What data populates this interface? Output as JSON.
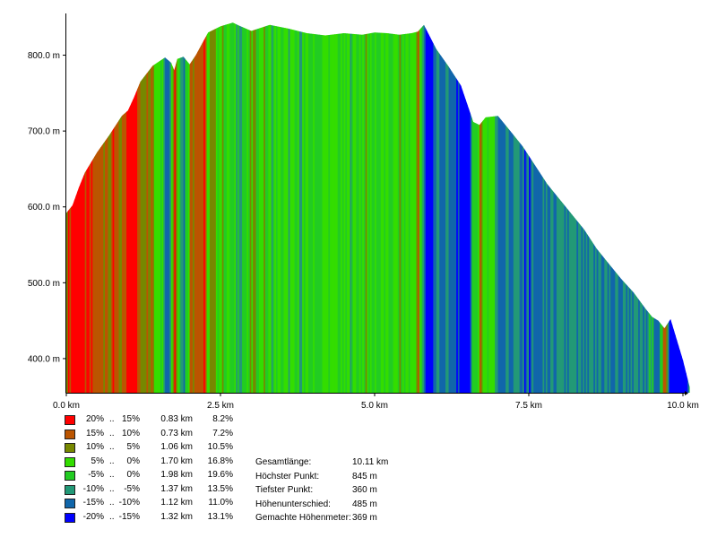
{
  "chart_data": {
    "type": "area",
    "title": "",
    "xlabel": "",
    "ylabel": "",
    "x_ticks": [
      "0.0 km",
      "2.5 km",
      "5.0 km",
      "7.5 km",
      "10.0 km"
    ],
    "x_tick_values": [
      0,
      2.5,
      5,
      7.5,
      10
    ],
    "y_ticks": [
      "400.0 m",
      "500.0 m",
      "600.0 m",
      "700.0 m",
      "800.0 m"
    ],
    "y_tick_values": [
      400,
      500,
      600,
      700,
      800
    ],
    "xlim": [
      0,
      10
    ],
    "ylim": [
      355,
      855
    ],
    "x": [
      0,
      0.1,
      0.2,
      0.3,
      0.5,
      0.7,
      0.9,
      1.0,
      1.1,
      1.2,
      1.4,
      1.6,
      1.7,
      1.75,
      1.8,
      1.9,
      2.0,
      2.1,
      2.2,
      2.3,
      2.5,
      2.7,
      2.8,
      3.0,
      3.3,
      3.6,
      3.9,
      4.2,
      4.5,
      4.8,
      5.0,
      5.2,
      5.4,
      5.6,
      5.7,
      5.8,
      5.9,
      6.0,
      6.2,
      6.4,
      6.6,
      6.7,
      6.8,
      7.0,
      7.2,
      7.4,
      7.6,
      7.8,
      8.0,
      8.2,
      8.4,
      8.6,
      8.8,
      9.0,
      9.2,
      9.4,
      9.5,
      9.6,
      9.7,
      9.8,
      9.9,
      10.0,
      10.11
    ],
    "y": [
      592,
      602,
      625,
      645,
      672,
      695,
      720,
      727,
      745,
      765,
      786,
      797,
      790,
      780,
      795,
      798,
      788,
      800,
      815,
      830,
      838,
      843,
      839,
      832,
      840,
      835,
      829,
      826,
      829,
      827,
      830,
      829,
      827,
      829,
      831,
      840,
      824,
      808,
      785,
      760,
      712,
      708,
      718,
      720,
      700,
      680,
      655,
      630,
      610,
      590,
      570,
      545,
      525,
      505,
      487,
      465,
      455,
      450,
      440,
      452,
      425,
      398,
      362
    ],
    "grade_colors": [
      "#ff0000",
      "#bb5500",
      "#778800",
      "#33dd00",
      "#22cc22",
      "#229977",
      "#1166aa",
      "#0000ff"
    ],
    "legend_placement": "bottom",
    "grid": false
  },
  "legend": [
    {
      "from": "20%",
      "to": "15%",
      "dist": "0.83 km",
      "pct": "8.2%",
      "color": "#ff0000"
    },
    {
      "from": "15%",
      "to": "10%",
      "dist": "0.73 km",
      "pct": "7.2%",
      "color": "#bb5500"
    },
    {
      "from": "10%",
      "to": "5%",
      "dist": "1.06 km",
      "pct": "10.5%",
      "color": "#778800"
    },
    {
      "from": "5%",
      "to": "0%",
      "dist": "1.70 km",
      "pct": "16.8%",
      "color": "#33dd00"
    },
    {
      "from": "-5%",
      "to": "0%",
      "dist": "1.98 km",
      "pct": "19.6%",
      "color": "#22cc22"
    },
    {
      "from": "-10%",
      "to": "-5%",
      "dist": "1.37 km",
      "pct": "13.5%",
      "color": "#229977"
    },
    {
      "from": "-15%",
      "to": "-10%",
      "dist": "1.12 km",
      "pct": "11.0%",
      "color": "#1166aa"
    },
    {
      "from": "-20%",
      "to": "-15%",
      "dist": "1.32 km",
      "pct": "13.1%",
      "color": "#0000ff"
    }
  ],
  "range_separator": "..",
  "stats": [
    {
      "label": "Gesamtlänge:",
      "value": "10.11 km"
    },
    {
      "label": "Höchster Punkt:",
      "value": "845 m"
    },
    {
      "label": "Tiefster Punkt:",
      "value": "360 m"
    },
    {
      "label": "Höhenunterschied:",
      "value": "485 m"
    },
    {
      "label": "Gemachte Höhenmeter:",
      "value": "369 m"
    }
  ]
}
